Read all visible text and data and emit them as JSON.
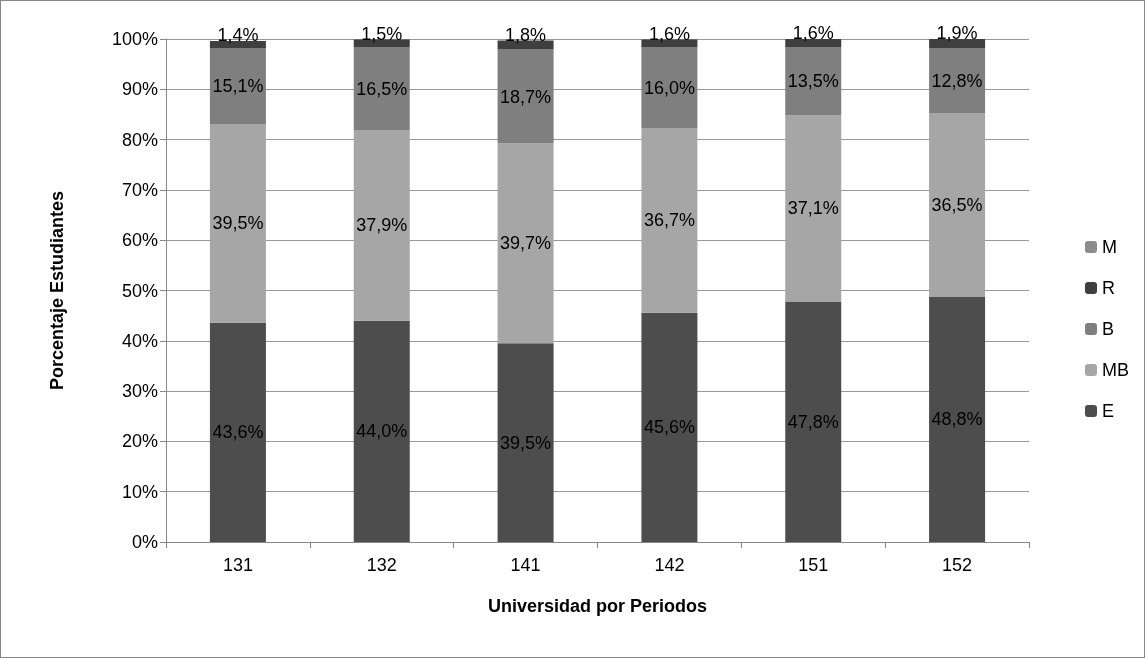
{
  "chart_data": {
    "type": "bar",
    "stacked": true,
    "xlabel": "Universidad por Periodos",
    "ylabel": "Porcentaje Estudiantes",
    "categories": [
      "131",
      "132",
      "141",
      "142",
      "151",
      "152"
    ],
    "series": [
      {
        "name": "E",
        "color": "#4d4d4d",
        "values": [
          43.6,
          44.0,
          39.5,
          45.6,
          47.8,
          48.8
        ],
        "value_labels": [
          "43,6%",
          "44,0%",
          "39,5%",
          "45,6%",
          "47,8%",
          "48,8%"
        ]
      },
      {
        "name": "MB",
        "color": "#a6a6a6",
        "values": [
          39.5,
          37.9,
          39.7,
          36.7,
          37.1,
          36.5
        ],
        "value_labels": [
          "39,5%",
          "37,9%",
          "39,7%",
          "36,7%",
          "37,1%",
          "36,5%"
        ]
      },
      {
        "name": "B",
        "color": "#7f7f7f",
        "values": [
          15.1,
          16.5,
          18.7,
          16.0,
          13.5,
          12.8
        ],
        "value_labels": [
          "15,1%",
          "16,5%",
          "18,7%",
          "16,0%",
          "13,5%",
          "12,8%"
        ]
      },
      {
        "name": "R",
        "color": "#3f3f3f",
        "values": [
          1.4,
          1.5,
          1.8,
          1.6,
          1.6,
          1.9
        ],
        "value_labels": [
          "1,4%",
          "1,5%",
          "1,8%",
          "1,6%",
          "1,6%",
          "1,9%"
        ]
      },
      {
        "name": "M",
        "color": "#8c8c8c",
        "values": [
          null,
          null,
          null,
          null,
          null,
          null
        ]
      }
    ],
    "ylim": [
      0,
      100
    ],
    "yticks": [
      {
        "value": 0,
        "label": "0%"
      },
      {
        "value": 10,
        "label": "10%"
      },
      {
        "value": 20,
        "label": "20%"
      },
      {
        "value": 30,
        "label": "30%"
      },
      {
        "value": 40,
        "label": "40%"
      },
      {
        "value": 50,
        "label": "50%"
      },
      {
        "value": 60,
        "label": "60%"
      },
      {
        "value": 70,
        "label": "70%"
      },
      {
        "value": 80,
        "label": "80%"
      },
      {
        "value": 90,
        "label": "90%"
      },
      {
        "value": 100,
        "label": "100%"
      }
    ],
    "grid": "y",
    "legend": "right"
  }
}
